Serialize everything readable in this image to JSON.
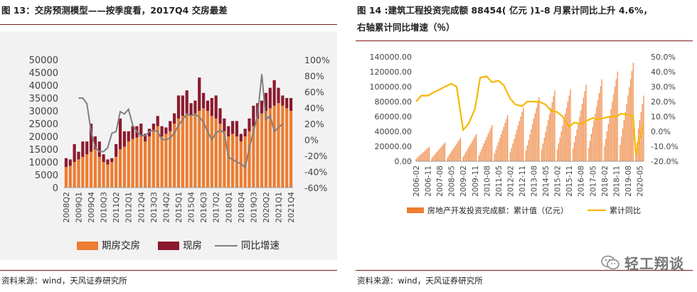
{
  "left": {
    "title": "图 13：交房预测模型——按季度看，2017Q4 交房最差",
    "source": "资料来源：wind，天风证券研究所"
  },
  "right": {
    "title_line1": "图 14 :建筑工程投资完成额 88454( 亿元 )1-8 月累计同比上升 4.6%，",
    "title_line2": "右轴累计同比增速（％）",
    "source": "资料来源：wind，天风证券研究所"
  },
  "watermark": {
    "text": "轻工翔谈",
    "icon": "wechat-icon"
  },
  "chart_data": [
    {
      "type": "bar",
      "stacked": true,
      "y_left_ticks": [
        "50000",
        "45000",
        "40000",
        "35000",
        "30000",
        "25000",
        "20000",
        "15000",
        "10000",
        "5000",
        "0"
      ],
      "y_right_ticks": [
        "100%",
        "80%",
        "60%",
        "40%",
        "20%",
        "0%",
        "-20%",
        "-40%",
        "-60%"
      ],
      "ylim_left": [
        0,
        50000
      ],
      "ylim_right": [
        -60,
        100
      ],
      "x_tick_labels": [
        "2008Q2",
        "2009Q1",
        "2009Q4",
        "2010Q3",
        "2011Q2",
        "2012Q1",
        "2012Q4",
        "2013Q3",
        "2014Q2",
        "2015Q1",
        "2015Q4",
        "2016Q3",
        "2017Q2",
        "2018Q1",
        "2018Q4",
        "2019Q3",
        "2020Q2",
        "2021Q1",
        "2021Q4"
      ],
      "categories": [
        "2008Q2",
        "2008Q3",
        "2008Q4",
        "2009Q1",
        "2009Q2",
        "2009Q3",
        "2009Q4",
        "2010Q1",
        "2010Q2",
        "2010Q3",
        "2010Q4",
        "2011Q1",
        "2011Q2",
        "2011Q3",
        "2011Q4",
        "2012Q1",
        "2012Q2",
        "2012Q3",
        "2012Q4",
        "2013Q1",
        "2013Q2",
        "2013Q3",
        "2013Q4",
        "2014Q1",
        "2014Q2",
        "2014Q3",
        "2014Q4",
        "2015Q1",
        "2015Q2",
        "2015Q3",
        "2015Q4",
        "2016Q1",
        "2016Q2",
        "2016Q3",
        "2016Q4",
        "2017Q1",
        "2017Q2",
        "2017Q3",
        "2017Q4",
        "2018Q1",
        "2018Q2",
        "2018Q3",
        "2018Q4",
        "2019Q1",
        "2019Q2",
        "2019Q3",
        "2019Q4",
        "2020Q1",
        "2020Q2",
        "2020Q3",
        "2020Q4",
        "2021Q1",
        "2021Q2",
        "2021Q3",
        "2021Q4"
      ],
      "series": [
        {
          "name": "期房交房",
          "color": "#ed7d31",
          "axis": "left",
          "values": [
            8000,
            8500,
            10000,
            11000,
            12000,
            13000,
            14000,
            15000,
            12000,
            10000,
            9000,
            10000,
            12000,
            15000,
            16000,
            18000,
            19000,
            19500,
            20000,
            18000,
            20000,
            22000,
            24000,
            20000,
            21000,
            22000,
            25000,
            27000,
            28000,
            29000,
            28000,
            29000,
            30000,
            31000,
            30000,
            28000,
            27000,
            25000,
            22000,
            20000,
            21000,
            20000,
            18000,
            20000,
            22000,
            24000,
            27000,
            29000,
            30000,
            31000,
            32000,
            33000,
            32000,
            31000,
            30000
          ]
        },
        {
          "name": "现房",
          "color": "#8b1a2e",
          "axis": "left",
          "values": [
            3500,
            2500,
            7000,
            3000,
            6000,
            5000,
            11000,
            5000,
            6000,
            3000,
            2000,
            1500,
            5000,
            12000,
            6000,
            4000,
            5000,
            4500,
            5000,
            3000,
            3000,
            3000,
            4000,
            4000,
            2500,
            4000,
            4000,
            9000,
            8000,
            9000,
            5000,
            5000,
            13000,
            6000,
            4000,
            7000,
            9000,
            6000,
            5000,
            4000,
            5000,
            6000,
            3000,
            3000,
            5000,
            8000,
            6000,
            5000,
            7000,
            8000,
            10000,
            6000,
            4000,
            4000,
            5000
          ]
        },
        {
          "name": "同比增速",
          "color": "#7f7f7f",
          "axis": "right",
          "type": "line",
          "values": [
            null,
            null,
            null,
            52,
            52,
            45,
            10,
            -10,
            -15,
            -15,
            -10,
            8,
            10,
            35,
            32,
            38,
            18,
            10,
            5,
            5,
            10,
            12,
            10,
            0,
            0,
            2,
            8,
            18,
            25,
            32,
            30,
            32,
            28,
            22,
            10,
            0,
            8,
            12,
            8,
            -22,
            -25,
            -28,
            -30,
            -35,
            -10,
            10,
            30,
            82,
            25,
            30,
            10,
            15,
            20,
            null,
            null
          ]
        }
      ]
    },
    {
      "type": "bar",
      "y_left_ticks": [
        "140000.00",
        "120000.00",
        "100000.00",
        "80000.00",
        "60000.00",
        "40000.00",
        "20000.00",
        "0.00"
      ],
      "y_right_ticks": [
        "50.0%",
        "40.0%",
        "30.0%",
        "20.0%",
        "10.0%",
        "0.0%",
        "-10.0%",
        "-20.0%"
      ],
      "ylim_left": [
        0,
        140000
      ],
      "ylim_right": [
        -20,
        50
      ],
      "x_tick_labels": [
        "2006-02",
        "2006-11",
        "2007-08",
        "2008-05",
        "2009-02",
        "2009-11",
        "2010-08",
        "2011-05",
        "2012-02",
        "2012-11",
        "2013-08",
        "2014-05",
        "2015-02",
        "2015-11",
        "2016-08",
        "2017-05",
        "2018-02",
        "2018-11",
        "2019-08",
        "2020-05"
      ],
      "series": [
        {
          "name": "房地产开发投资完成额：累计值（亿元）",
          "color": "#ed7d31",
          "axis": "left",
          "annual_december_values": [
            19423,
            25289,
            31203,
            36242,
            48267,
            61797,
            72000,
            86013,
            95036,
            95979,
            102581,
            109799,
            120264,
            132194
          ],
          "years": [
            2006,
            2007,
            2008,
            2009,
            2010,
            2011,
            2012,
            2013,
            2014,
            2015,
            2016,
            2017,
            2018,
            2019
          ]
        },
        {
          "name": "累计同比",
          "color": "#f5b800",
          "axis": "right",
          "type": "line",
          "x": [
            "2006-02",
            "2006-06",
            "2006-11",
            "2007-03",
            "2007-08",
            "2007-12",
            "2008-05",
            "2008-09",
            "2009-02",
            "2009-06",
            "2009-11",
            "2010-03",
            "2010-08",
            "2010-12",
            "2011-05",
            "2011-09",
            "2012-02",
            "2012-06",
            "2012-11",
            "2013-03",
            "2013-08",
            "2013-12",
            "2014-05",
            "2014-09",
            "2015-02",
            "2015-06",
            "2015-11",
            "2016-03",
            "2016-08",
            "2016-12",
            "2017-05",
            "2017-09",
            "2018-02",
            "2018-06",
            "2018-11",
            "2019-03",
            "2019-08",
            "2019-12",
            "2020-02",
            "2020-05",
            "2020-08"
          ],
          "values": [
            20,
            24,
            24,
            26,
            28,
            30,
            32,
            30,
            1,
            5,
            15,
            36,
            37,
            33,
            34,
            31,
            22,
            18,
            17,
            20,
            20,
            20,
            18,
            14,
            13,
            10,
            3,
            6,
            5,
            7,
            9,
            8,
            9,
            10,
            10,
            12,
            11,
            10,
            -16,
            -4,
            4.6
          ]
        }
      ]
    }
  ]
}
